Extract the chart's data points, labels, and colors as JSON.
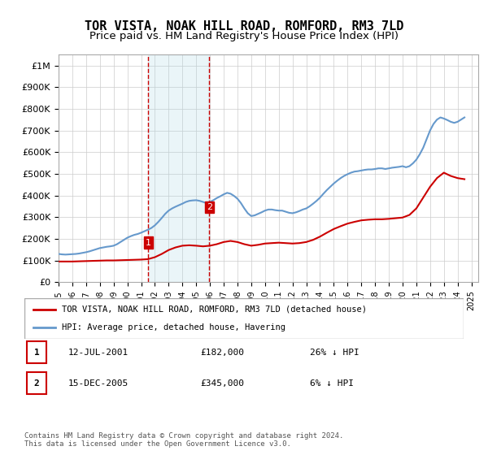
{
  "title": "TOR VISTA, NOAK HILL ROAD, ROMFORD, RM3 7LD",
  "subtitle": "Price paid vs. HM Land Registry's House Price Index (HPI)",
  "title_fontsize": 11,
  "subtitle_fontsize": 9.5,
  "ylabel_ticks": [
    "£0",
    "£100K",
    "£200K",
    "£300K",
    "£400K",
    "£500K",
    "£600K",
    "£700K",
    "£800K",
    "£900K",
    "£1M"
  ],
  "ytick_vals": [
    0,
    100000,
    200000,
    300000,
    400000,
    500000,
    600000,
    700000,
    800000,
    900000,
    1000000
  ],
  "ylim": [
    0,
    1050000
  ],
  "xlim_start": 1995.0,
  "xlim_end": 2025.5,
  "transaction1": {
    "date_num": 2001.53,
    "price": 182000,
    "label": "1",
    "date_str": "12-JUL-2001",
    "price_str": "£182,000",
    "pct_str": "26% ↓ HPI"
  },
  "transaction2": {
    "date_num": 2005.96,
    "price": 345000,
    "label": "2",
    "date_str": "15-DEC-2005",
    "price_str": "£345,000",
    "pct_str": "6% ↓ HPI"
  },
  "shade_color": "#add8e6",
  "shade_alpha": 0.25,
  "dashed_color": "#cc0000",
  "red_line_color": "#cc0000",
  "blue_line_color": "#6699cc",
  "legend_label_red": "TOR VISTA, NOAK HILL ROAD, ROMFORD, RM3 7LD (detached house)",
  "legend_label_blue": "HPI: Average price, detached house, Havering",
  "footer": "Contains HM Land Registry data © Crown copyright and database right 2024.\nThis data is licensed under the Open Government Licence v3.0.",
  "table_rows": [
    [
      "1",
      "12-JUL-2001",
      "£182,000",
      "26% ↓ HPI"
    ],
    [
      "2",
      "15-DEC-2005",
      "£345,000",
      "6% ↓ HPI"
    ]
  ],
  "hpi_data": {
    "years": [
      1995.0,
      1995.25,
      1995.5,
      1995.75,
      1996.0,
      1996.25,
      1996.5,
      1996.75,
      1997.0,
      1997.25,
      1997.5,
      1997.75,
      1998.0,
      1998.25,
      1998.5,
      1998.75,
      1999.0,
      1999.25,
      1999.5,
      1999.75,
      2000.0,
      2000.25,
      2000.5,
      2000.75,
      2001.0,
      2001.25,
      2001.5,
      2001.75,
      2002.0,
      2002.25,
      2002.5,
      2002.75,
      2003.0,
      2003.25,
      2003.5,
      2003.75,
      2004.0,
      2004.25,
      2004.5,
      2004.75,
      2005.0,
      2005.25,
      2005.5,
      2005.75,
      2006.0,
      2006.25,
      2006.5,
      2006.75,
      2007.0,
      2007.25,
      2007.5,
      2007.75,
      2008.0,
      2008.25,
      2008.5,
      2008.75,
      2009.0,
      2009.25,
      2009.5,
      2009.75,
      2010.0,
      2010.25,
      2010.5,
      2010.75,
      2011.0,
      2011.25,
      2011.5,
      2011.75,
      2012.0,
      2012.25,
      2012.5,
      2012.75,
      2013.0,
      2013.25,
      2013.5,
      2013.75,
      2014.0,
      2014.25,
      2014.5,
      2014.75,
      2015.0,
      2015.25,
      2015.5,
      2015.75,
      2016.0,
      2016.25,
      2016.5,
      2016.75,
      2017.0,
      2017.25,
      2017.5,
      2017.75,
      2018.0,
      2018.25,
      2018.5,
      2018.75,
      2019.0,
      2019.25,
      2019.5,
      2019.75,
      2020.0,
      2020.25,
      2020.5,
      2020.75,
      2021.0,
      2021.25,
      2021.5,
      2021.75,
      2022.0,
      2022.25,
      2022.5,
      2022.75,
      2023.0,
      2023.25,
      2023.5,
      2023.75,
      2024.0,
      2024.25,
      2024.5
    ],
    "values": [
      130000,
      128000,
      127000,
      128000,
      129000,
      130000,
      132000,
      135000,
      138000,
      142000,
      147000,
      152000,
      157000,
      160000,
      163000,
      165000,
      168000,
      175000,
      185000,
      195000,
      205000,
      212000,
      218000,
      222000,
      228000,
      235000,
      242000,
      250000,
      262000,
      278000,
      296000,
      315000,
      330000,
      340000,
      348000,
      355000,
      362000,
      370000,
      375000,
      377000,
      378000,
      375000,
      370000,
      365000,
      370000,
      378000,
      388000,
      396000,
      405000,
      412000,
      408000,
      398000,
      385000,
      365000,
      340000,
      318000,
      305000,
      308000,
      315000,
      322000,
      330000,
      335000,
      335000,
      332000,
      330000,
      330000,
      325000,
      320000,
      318000,
      322000,
      328000,
      335000,
      340000,
      350000,
      362000,
      375000,
      390000,
      408000,
      425000,
      440000,
      455000,
      468000,
      480000,
      490000,
      498000,
      505000,
      510000,
      512000,
      515000,
      518000,
      520000,
      520000,
      522000,
      525000,
      525000,
      522000,
      525000,
      528000,
      530000,
      532000,
      535000,
      530000,
      535000,
      548000,
      565000,
      590000,
      620000,
      660000,
      700000,
      730000,
      750000,
      760000,
      755000,
      748000,
      740000,
      735000,
      740000,
      750000,
      760000
    ]
  },
  "price_data": {
    "years": [
      1995.0,
      1995.5,
      1996.0,
      1996.5,
      1997.0,
      1997.5,
      1998.0,
      1998.5,
      1999.0,
      1999.5,
      2000.0,
      2000.5,
      2001.0,
      2001.5,
      2002.0,
      2002.5,
      2003.0,
      2003.5,
      2004.0,
      2004.5,
      2005.0,
      2005.5,
      2006.0,
      2006.5,
      2007.0,
      2007.5,
      2008.0,
      2008.5,
      2009.0,
      2009.5,
      2010.0,
      2010.5,
      2011.0,
      2011.5,
      2012.0,
      2012.5,
      2013.0,
      2013.5,
      2014.0,
      2014.5,
      2015.0,
      2015.5,
      2016.0,
      2016.5,
      2017.0,
      2017.5,
      2018.0,
      2018.5,
      2019.0,
      2019.5,
      2020.0,
      2020.5,
      2021.0,
      2021.5,
      2022.0,
      2022.5,
      2023.0,
      2023.5,
      2024.0,
      2024.5
    ],
    "values": [
      95000,
      95000,
      95000,
      96000,
      97000,
      98000,
      99000,
      100000,
      100000,
      101000,
      102000,
      103000,
      104000,
      106000,
      115000,
      130000,
      148000,
      160000,
      168000,
      170000,
      168000,
      165000,
      168000,
      175000,
      185000,
      190000,
      185000,
      175000,
      168000,
      172000,
      178000,
      180000,
      182000,
      180000,
      178000,
      180000,
      185000,
      195000,
      210000,
      228000,
      245000,
      258000,
      270000,
      278000,
      285000,
      288000,
      290000,
      290000,
      292000,
      295000,
      298000,
      310000,
      340000,
      390000,
      440000,
      480000,
      505000,
      490000,
      480000,
      475000
    ]
  }
}
